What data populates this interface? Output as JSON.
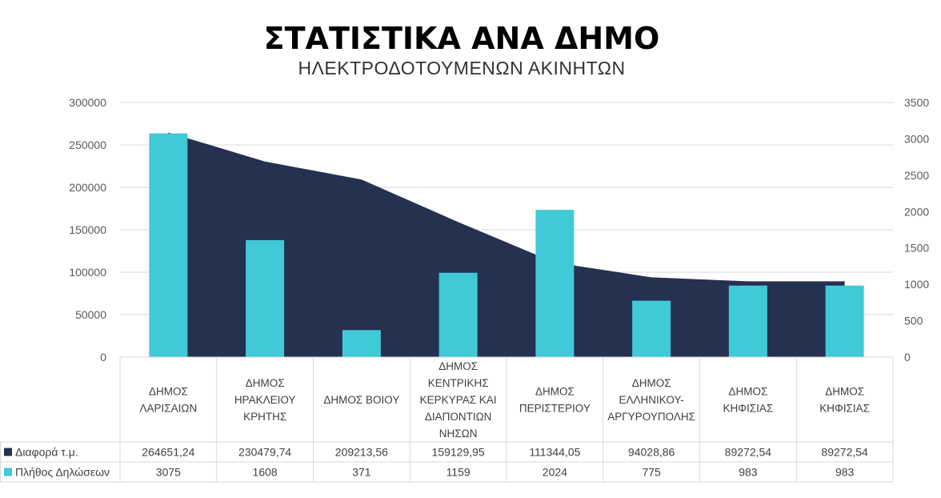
{
  "chart_data": {
    "type": "bar",
    "title": "ΣΤΑΤΙΣΤΙΚΑ ΑΝΑ ΔΗΜΟ",
    "subtitle": "ΗΛΕΚΤΡΟΔΟΤΟΥΜΕΝΩΝ ΑΚΙΝΗΤΩΝ",
    "categories": [
      [
        "ΔΗΜΟΣ",
        "ΛΑΡΙΣΑΙΩΝ"
      ],
      [
        "ΔΗΜΟΣ",
        "ΗΡΑΚΛΕΙΟΥ",
        "ΚΡΗΤΗΣ"
      ],
      [
        "ΔΗΜΟΣ ΒΟΙΟΥ"
      ],
      [
        "ΔΗΜΟΣ",
        "ΚΕΝΤΡΙΚΗΣ",
        "ΚΕΡΚΥΡΑΣ ΚΑΙ",
        "ΔΙΑΠΟΝΤΙΩΝ",
        "ΝΗΣΩΝ"
      ],
      [
        "ΔΗΜΟΣ",
        "ΠΕΡΙΣΤΕΡΙΟΥ"
      ],
      [
        "ΔΗΜΟΣ",
        "ΕΛΛΗΝΙΚΟΥ-",
        "ΑΡΓΥΡΟΥΠΟΛΗΣ"
      ],
      [
        "ΔΗΜΟΣ",
        "ΚΗΦΙΣΙΑΣ"
      ],
      [
        "ΔΗΜΟΣ",
        "ΚΗΦΙΣΙΑΣ"
      ]
    ],
    "series": [
      {
        "name": "Διαφορά τ.μ.",
        "type": "area",
        "axis": "left",
        "color": "#243150",
        "values": [
          264651.24,
          230479.74,
          209213.56,
          159129.95,
          111344.05,
          94028.86,
          89272.54,
          89272.54
        ],
        "labels": [
          "264651,24",
          "230479,74",
          "209213,56",
          "159129,95",
          "111344,05",
          "94028,86",
          "89272,54",
          "89272,54"
        ]
      },
      {
        "name": "Πλήθος Δηλώσεων",
        "type": "bar",
        "axis": "right",
        "color": "#40CAD8",
        "values": [
          3075,
          1608,
          371,
          1159,
          2024,
          775,
          983,
          983
        ],
        "labels": [
          "3075",
          "1608",
          "371",
          "1159",
          "2024",
          "775",
          "983",
          "983"
        ]
      }
    ],
    "y_left": {
      "min": 0,
      "max": 300000,
      "ticks": [
        "0",
        "50000",
        "100000",
        "150000",
        "200000",
        "250000",
        "300000"
      ]
    },
    "y_right": {
      "min": 0,
      "max": 3500,
      "ticks": [
        "0",
        "500",
        "1000",
        "1500",
        "2000",
        "2500",
        "3000",
        "3500"
      ]
    },
    "grid": true,
    "legend": "data-table"
  }
}
